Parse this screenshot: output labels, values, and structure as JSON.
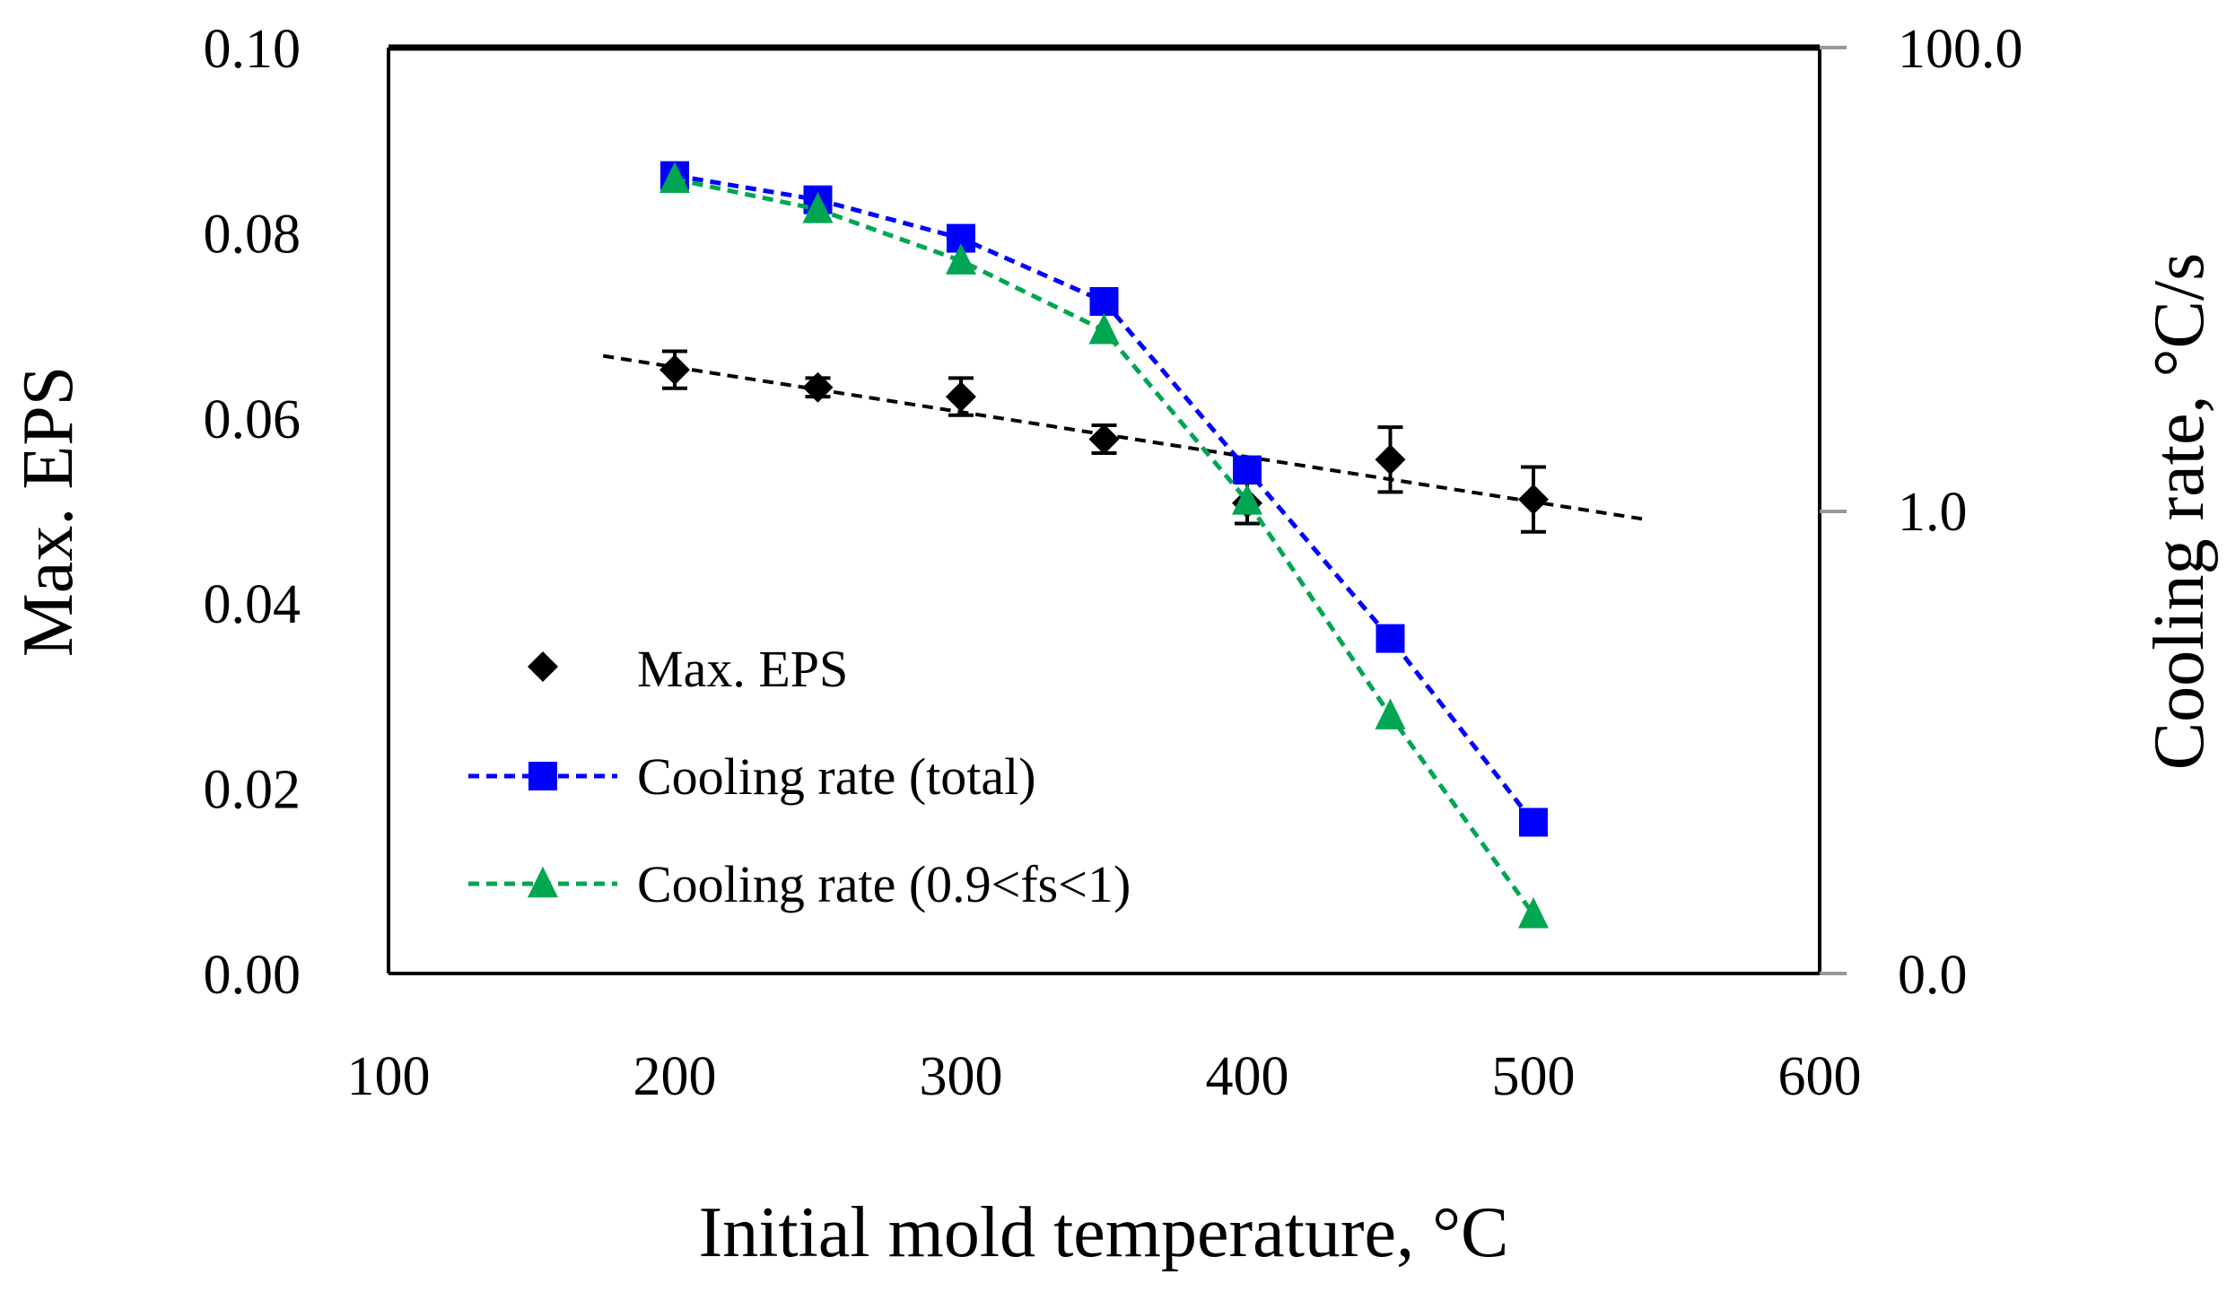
{
  "chart_data": {
    "type": "scatter",
    "title": "",
    "xlabel": "Initial mold temperature, °C",
    "ylabel_left": "Max. EPS",
    "ylabel_right": "Cooling rate, °C/s",
    "xlim": [
      100,
      600
    ],
    "ylim_left": [
      0,
      0.1
    ],
    "ylim_right": [
      0.0,
      100.0
    ],
    "right_axis_scale": "log",
    "x_tick_labels": [
      "100",
      "200",
      "300",
      "400",
      "500",
      "600"
    ],
    "y_left_tick_labels": [
      "0.00",
      "0.02",
      "0.04",
      "0.06",
      "0.08",
      "0.10"
    ],
    "y_right_tick_labels": [
      "0.0",
      "1.0",
      "100.0"
    ],
    "legend_position": "bottom-left",
    "series": [
      {
        "name": "Max. EPS",
        "type": "scatter",
        "axis": "left",
        "color": "#000000",
        "marker": "diamond",
        "x": [
          200,
          250,
          300,
          350,
          400,
          450,
          500
        ],
        "y": [
          0.0652,
          0.0633,
          0.0623,
          0.0577,
          0.0508,
          0.0555,
          0.0512
        ],
        "error": [
          0.002,
          0.001,
          0.002,
          0.0015,
          0.0022,
          0.0035,
          0.0035
        ],
        "trendline": {
          "x": [
            175,
            540
          ],
          "y": [
            0.0667,
            0.049
          ]
        }
      },
      {
        "name": "Cooling rate (total)",
        "type": "line",
        "axis": "right",
        "color": "#0000ff",
        "marker": "square",
        "x": [
          200,
          250,
          300,
          350,
          400,
          450,
          500
        ],
        "y": [
          28.0,
          22.0,
          15.0,
          8.0,
          1.5,
          0.28,
          0.045
        ]
      },
      {
        "name": "Cooling rate (0.9<fs<1)",
        "type": "line",
        "axis": "right",
        "color": "#00a651",
        "marker": "triangle",
        "x": [
          200,
          250,
          300,
          350,
          400,
          450,
          500
        ],
        "y": [
          27.0,
          20.0,
          12.0,
          6.0,
          1.1,
          0.13,
          0.018
        ]
      }
    ]
  }
}
